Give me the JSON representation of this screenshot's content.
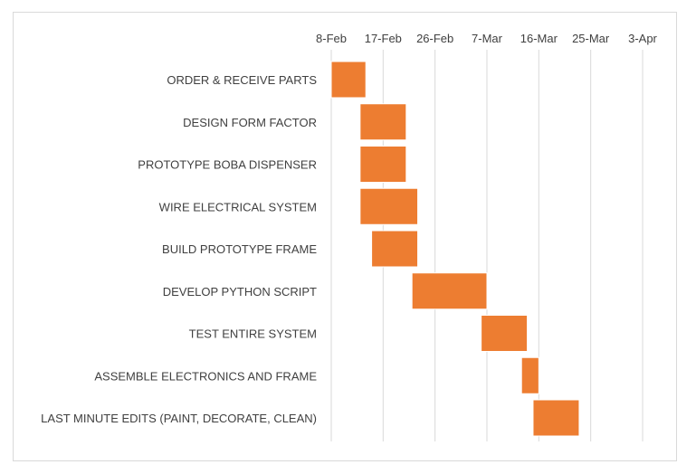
{
  "chart_data": {
    "type": "gantt",
    "title": "",
    "xlabel": "",
    "ylabel": "",
    "x_ticks": [
      "8-Feb",
      "17-Feb",
      "26-Feb",
      "7-Mar",
      "16-Mar",
      "25-Mar",
      "3-Apr"
    ],
    "x_tick_days": [
      0,
      9,
      18,
      27,
      36,
      45,
      54
    ],
    "xlim_days": [
      0,
      54
    ],
    "x_axis_position": "top",
    "gridlines": "vertical",
    "bar_color": "#ED7D31",
    "tasks": [
      {
        "label": "ORDER & RECEIVE PARTS",
        "start": 0,
        "end": 6
      },
      {
        "label": "DESIGN FORM FACTOR",
        "start": 5,
        "end": 13
      },
      {
        "label": "PROTOTYPE BOBA DISPENSER",
        "start": 5,
        "end": 13
      },
      {
        "label": "WIRE ELECTRICAL SYSTEM",
        "start": 5,
        "end": 15
      },
      {
        "label": "BUILD PROTOTYPE FRAME",
        "start": 7,
        "end": 15
      },
      {
        "label": "DEVELOP PYTHON SCRIPT",
        "start": 14,
        "end": 27
      },
      {
        "label": "TEST ENTIRE SYSTEM",
        "start": 26,
        "end": 34
      },
      {
        "label": "ASSEMBLE ELECTRONICS AND FRAME",
        "start": 33,
        "end": 36
      },
      {
        "label": "LAST MINUTE EDITS (PAINT, DECORATE, CLEAN)",
        "start": 35,
        "end": 43
      }
    ]
  }
}
